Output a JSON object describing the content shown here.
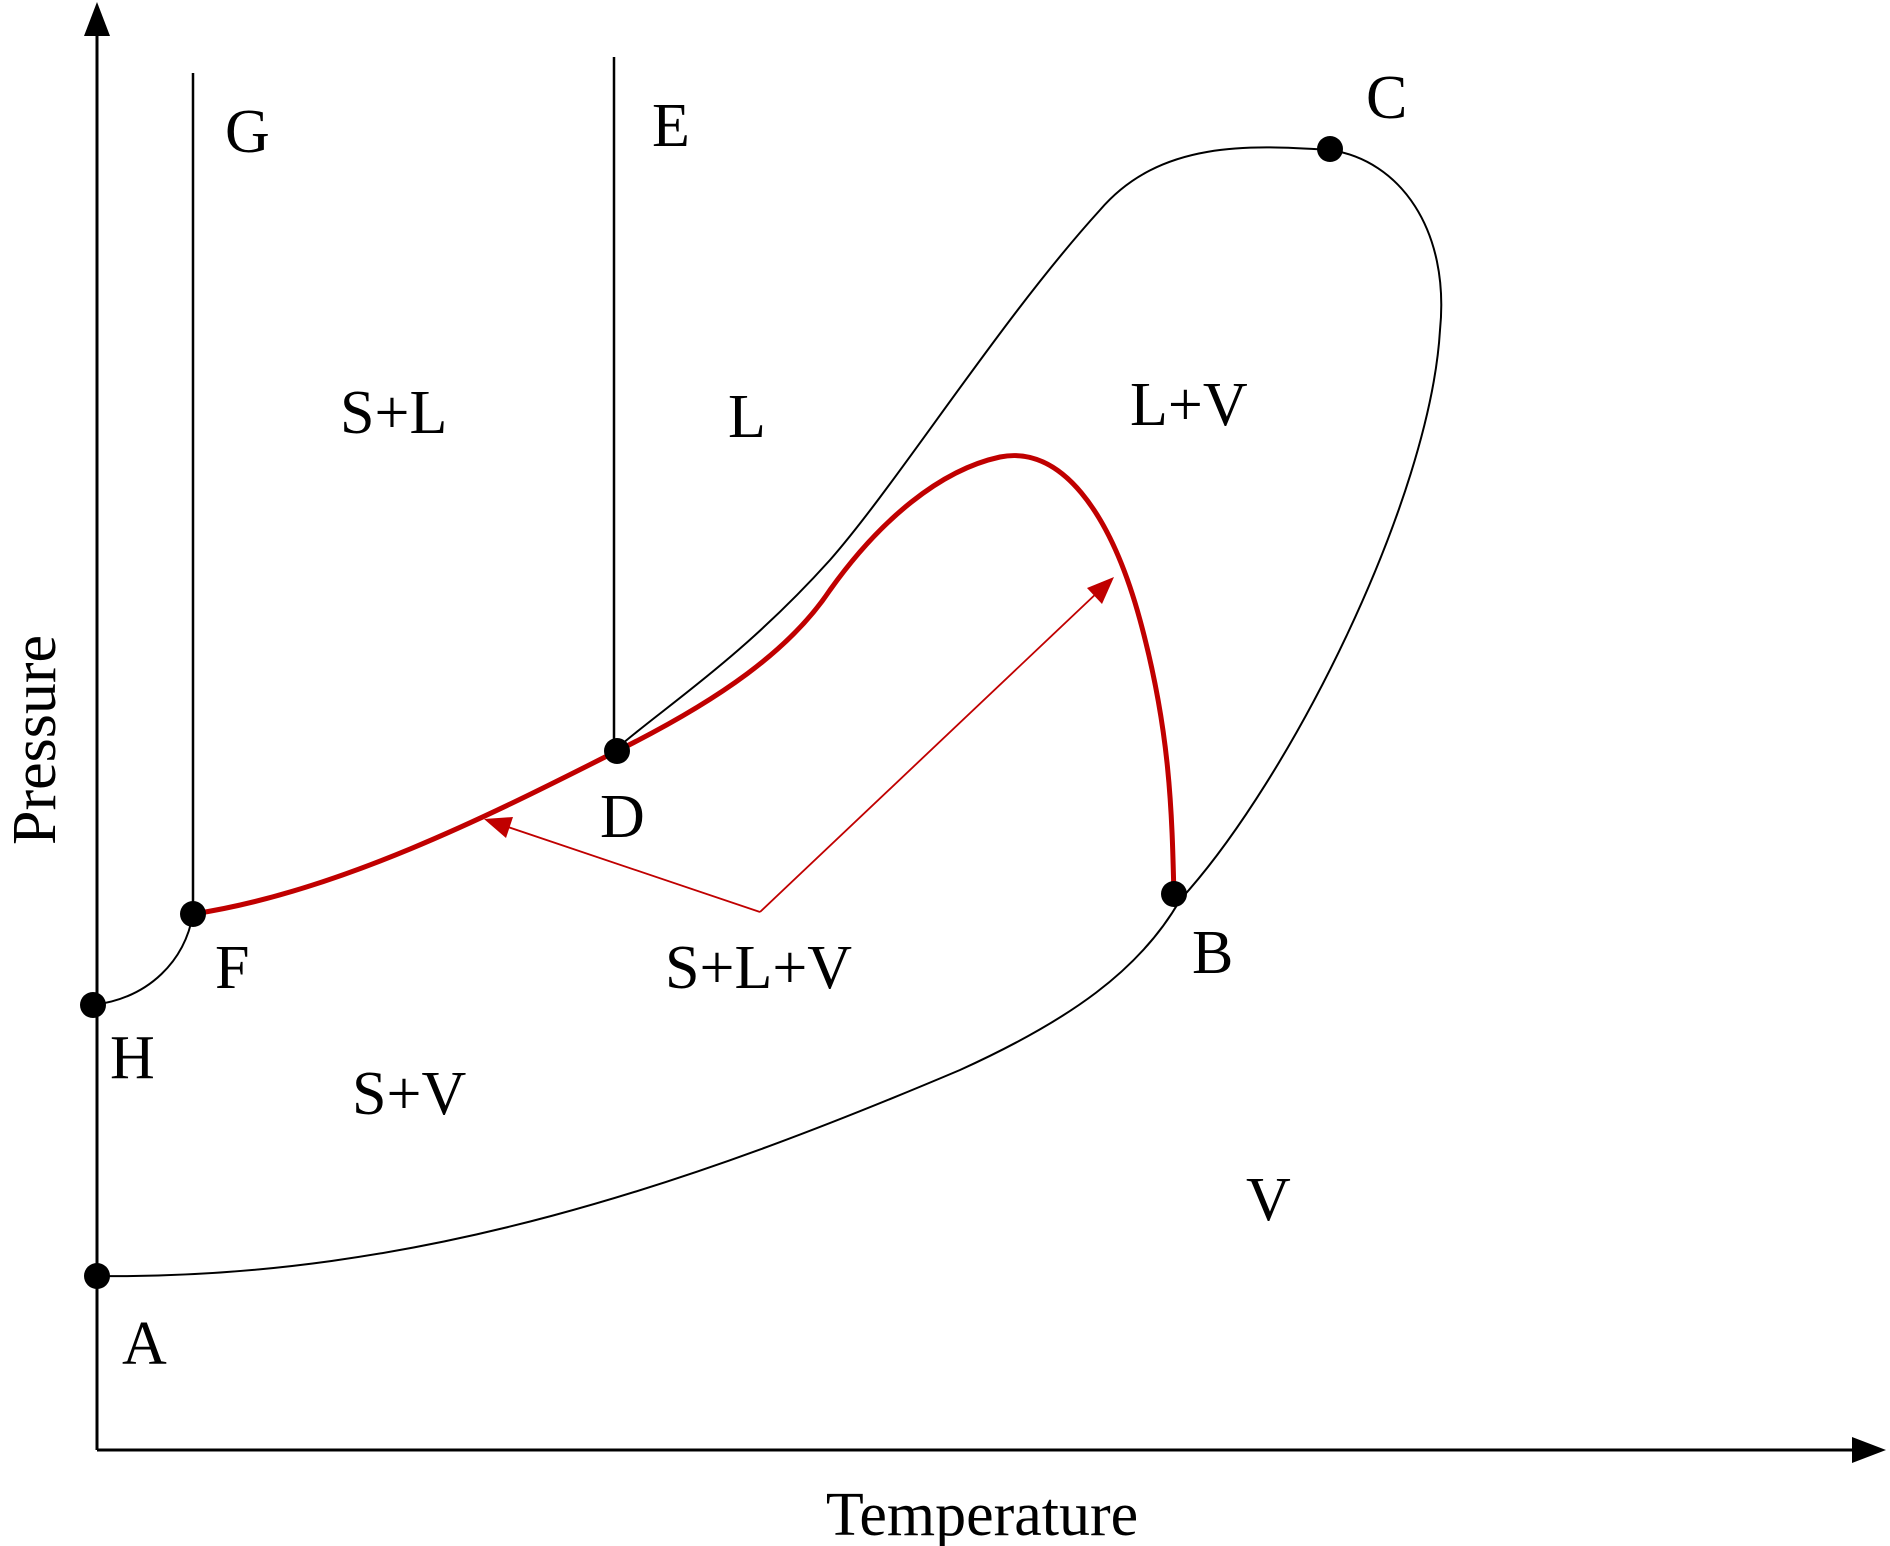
{
  "axes": {
    "x_title": "Temperature",
    "y_title": "Pressure"
  },
  "points": {
    "A": "A",
    "B": "B",
    "C": "C",
    "D": "D",
    "E": "E",
    "F": "F",
    "G": "G",
    "H": "H"
  },
  "regions": {
    "solid_liquid": "S+L",
    "liquid": "L",
    "liquid_vapor": "L+V",
    "solid_liquid_vapor": "S+L+V",
    "solid_vapor": "S+V",
    "vapor": "V"
  },
  "colors": {
    "line": "#000000",
    "highlight": "#c00000",
    "background": "#ffffff"
  }
}
